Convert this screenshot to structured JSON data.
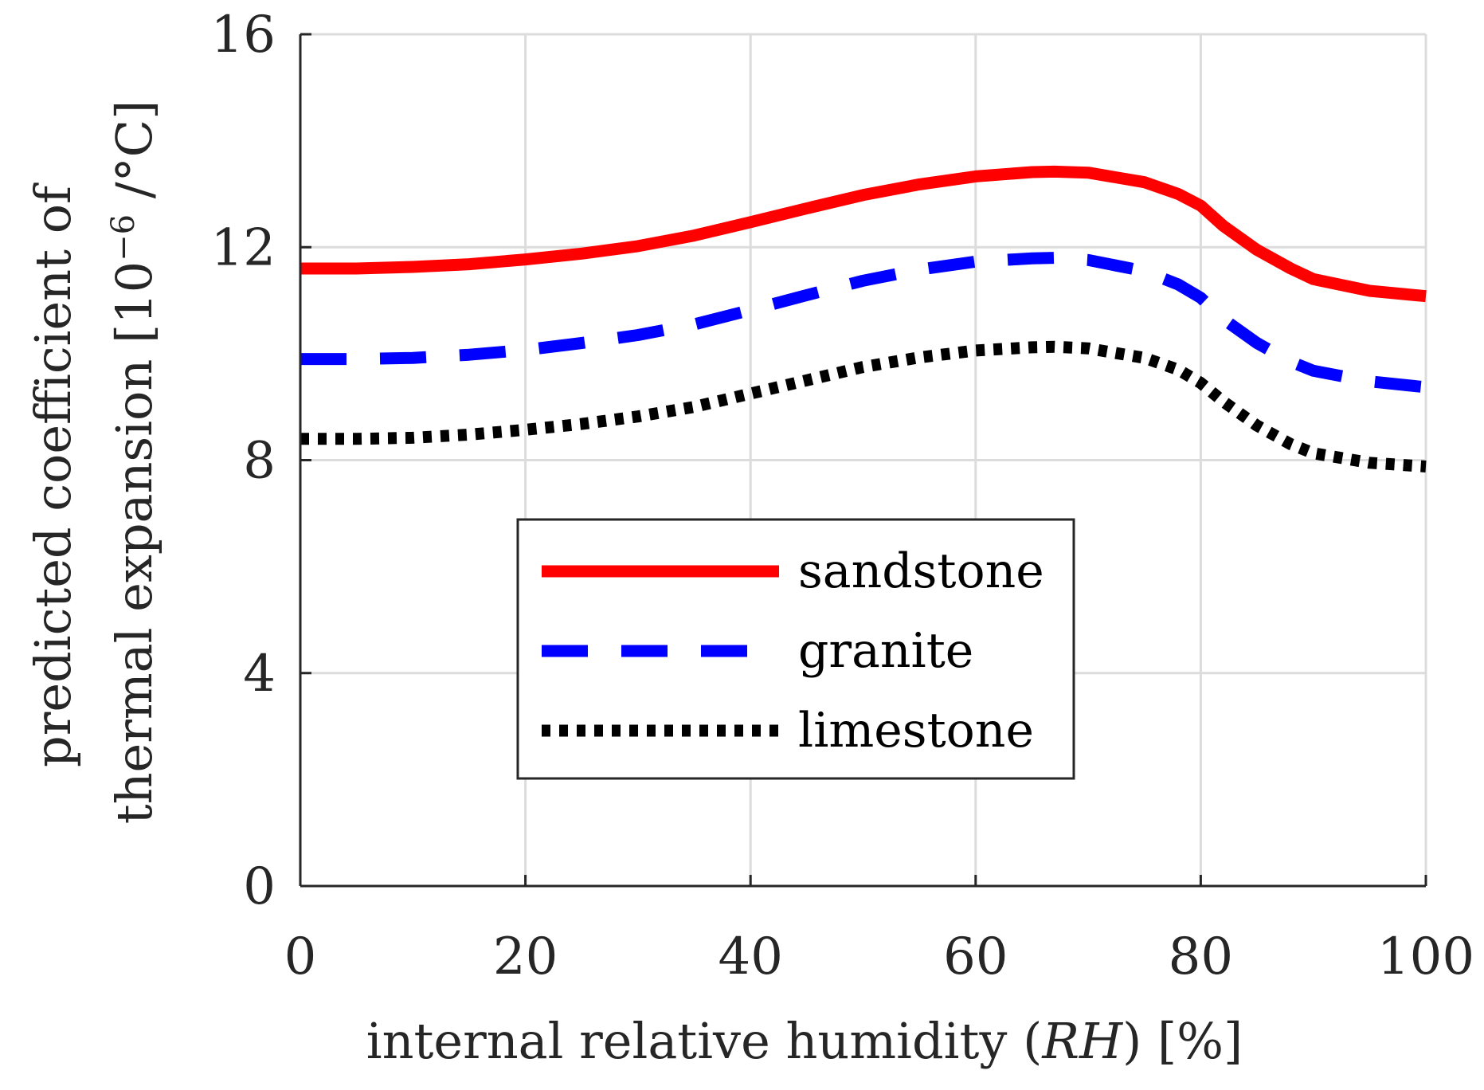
{
  "chart_data": {
    "type": "line",
    "xlabel": {
      "prefix": "internal relative humidity (",
      "var": "RH",
      "suffix": ") [%]"
    },
    "ylabel": {
      "line1": "predicted coefficient of",
      "line2_text": "thermal expansion [10",
      "line2_sup": "−6",
      "line2_end": " /°C]"
    },
    "xlim": [
      0,
      100
    ],
    "ylim": [
      0,
      16
    ],
    "x_ticks": [
      0,
      20,
      40,
      60,
      80,
      100
    ],
    "x_tick_labels": [
      "0",
      "20",
      "40",
      "60",
      "80",
      "100"
    ],
    "y_ticks": [
      0,
      4,
      8,
      12,
      16
    ],
    "y_tick_labels": [
      "0",
      "4",
      "8",
      "12",
      "16"
    ],
    "grid": true,
    "legend_position": "lower-center",
    "x": [
      0,
      5,
      10,
      15,
      20,
      25,
      30,
      35,
      40,
      45,
      50,
      55,
      60,
      65,
      67,
      70,
      75,
      78,
      80,
      82,
      85,
      88,
      90,
      95,
      100
    ],
    "series": [
      {
        "name": "sandstone",
        "color": "#ff0000",
        "style": "solid",
        "values": [
          11.6,
          11.6,
          11.63,
          11.68,
          11.77,
          11.88,
          12.02,
          12.22,
          12.47,
          12.73,
          12.98,
          13.18,
          13.33,
          13.41,
          13.42,
          13.4,
          13.22,
          13.0,
          12.78,
          12.4,
          11.95,
          11.6,
          11.4,
          11.18,
          11.08
        ]
      },
      {
        "name": "granite",
        "color": "#0000ff",
        "style": "dashed",
        "values": [
          9.9,
          9.9,
          9.92,
          9.98,
          10.07,
          10.2,
          10.35,
          10.55,
          10.82,
          11.1,
          11.37,
          11.58,
          11.73,
          11.79,
          11.8,
          11.76,
          11.55,
          11.3,
          11.05,
          10.65,
          10.2,
          9.85,
          9.68,
          9.48,
          9.37
        ]
      },
      {
        "name": "limestone",
        "color": "#000000",
        "style": "dotted",
        "values": [
          8.4,
          8.4,
          8.42,
          8.48,
          8.57,
          8.68,
          8.82,
          9.0,
          9.25,
          9.5,
          9.75,
          9.93,
          10.06,
          10.12,
          10.13,
          10.1,
          9.92,
          9.7,
          9.45,
          9.1,
          8.65,
          8.3,
          8.13,
          7.95,
          7.88
        ]
      }
    ]
  }
}
